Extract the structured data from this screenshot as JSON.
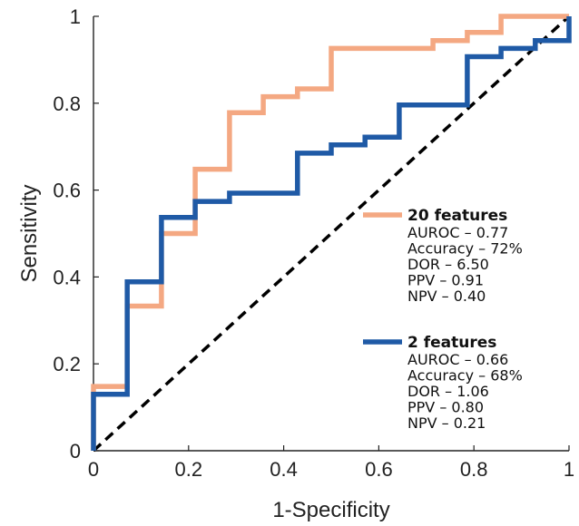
{
  "chart_data": {
    "type": "line",
    "title": "",
    "xlabel": "1-Specificity",
    "ylabel": "Sensitivity",
    "xlim": [
      0,
      1
    ],
    "ylim": [
      0,
      1
    ],
    "xticks": [
      "0",
      "0.2",
      "0.4",
      "0.6",
      "0.8",
      "1"
    ],
    "yticks": [
      "0",
      "0.2",
      "0.4",
      "0.6",
      "0.8",
      "1"
    ],
    "grid": false,
    "legend_position": "right",
    "series": [
      {
        "name": "20 features",
        "color": "#F4A882",
        "stats": [
          "AUROC – 0.77",
          "Accuracy – 72%",
          "DOR – 6.50",
          "PPV – 0.91",
          "NPV – 0.40"
        ],
        "x": [
          0,
          0,
          0.071,
          0.071,
          0.143,
          0.143,
          0.214,
          0.214,
          0.286,
          0.286,
          0.357,
          0.357,
          0.429,
          0.429,
          0.5,
          0.5,
          0.714,
          0.714,
          0.786,
          0.786,
          0.857,
          0.857,
          1
        ],
        "y": [
          0,
          0.148,
          0.148,
          0.333,
          0.333,
          0.5,
          0.5,
          0.648,
          0.648,
          0.778,
          0.778,
          0.815,
          0.815,
          0.833,
          0.833,
          0.926,
          0.926,
          0.944,
          0.944,
          0.963,
          0.963,
          1,
          1
        ]
      },
      {
        "name": "2 features",
        "color": "#1F5AA6",
        "stats": [
          "AUROC – 0.66",
          "Accuracy – 68%",
          "DOR – 1.06",
          "PPV – 0.80",
          "NPV – 0.21"
        ],
        "x": [
          0,
          0,
          0.071,
          0.071,
          0.143,
          0.143,
          0.214,
          0.214,
          0.286,
          0.286,
          0.429,
          0.429,
          0.5,
          0.5,
          0.571,
          0.571,
          0.643,
          0.643,
          0.786,
          0.786,
          0.857,
          0.857,
          0.929,
          0.929,
          1,
          1
        ],
        "y": [
          0,
          0.13,
          0.13,
          0.389,
          0.389,
          0.537,
          0.537,
          0.574,
          0.574,
          0.593,
          0.593,
          0.685,
          0.685,
          0.704,
          0.704,
          0.722,
          0.722,
          0.796,
          0.796,
          0.907,
          0.907,
          0.926,
          0.926,
          0.944,
          0.944,
          1
        ]
      }
    ],
    "reference_line": {
      "x": [
        0,
        1
      ],
      "y": [
        0,
        1
      ],
      "style": "dashed",
      "color": "#000000"
    }
  }
}
